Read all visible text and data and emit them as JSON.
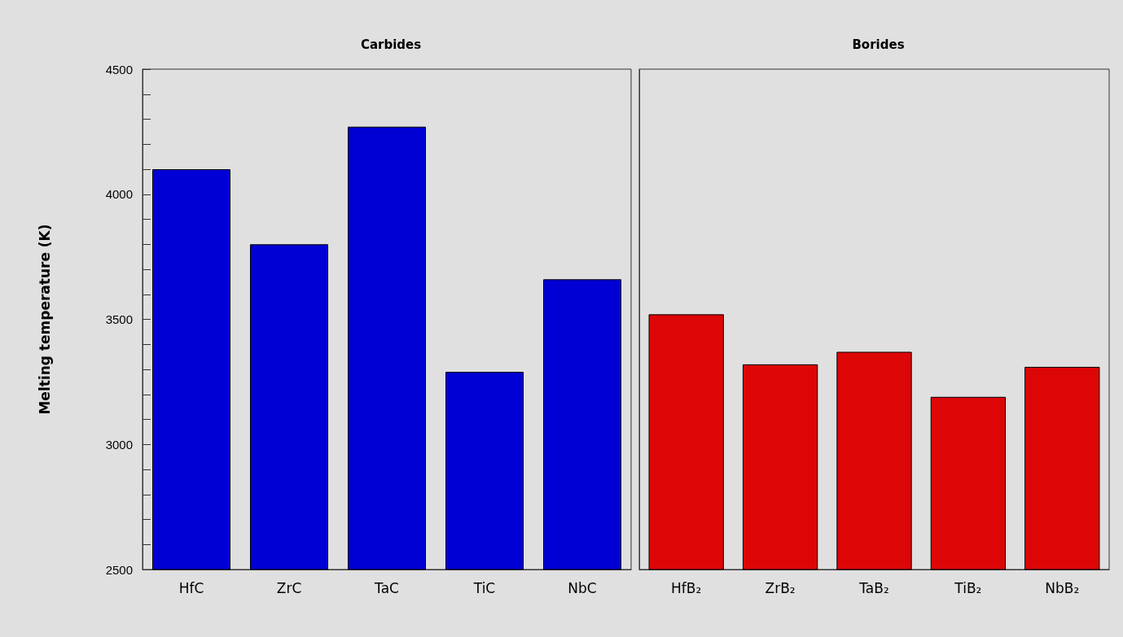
{
  "chart_data": [
    {
      "type": "bar",
      "title": "Carbides",
      "ylabel": "Melting temperature (K)",
      "categories": [
        "HfC",
        "ZrC",
        "TaC",
        "TiC",
        "NbC"
      ],
      "values": [
        4100,
        3800,
        4270,
        3290,
        3660
      ],
      "color": "#0000d4",
      "ylim": [
        2500,
        4500
      ],
      "yticks": [
        2500,
        {
          "value": 2600,
          "label": null
        },
        {
          "value": 2700,
          "label": null
        },
        {
          "value": 2800,
          "label": null
        },
        {
          "value": 2900,
          "label": null
        },
        3000,
        {
          "value": 3100,
          "label": null
        },
        {
          "value": 3200,
          "label": null
        },
        {
          "value": 3300,
          "label": null
        },
        {
          "value": 3400,
          "label": null
        },
        3500,
        {
          "value": 3600,
          "label": null
        },
        {
          "value": 3700,
          "label": null
        },
        {
          "value": 3800,
          "label": null
        },
        {
          "value": 3900,
          "label": null
        },
        4000,
        {
          "value": 4100,
          "label": null
        },
        {
          "value": 4200,
          "label": null
        },
        {
          "value": 4300,
          "label": null
        },
        {
          "value": 4400,
          "label": null
        },
        4500
      ],
      "grid": false
    },
    {
      "type": "bar",
      "title": "Borides",
      "categories": [
        "HfB₂",
        "ZrB₂",
        "TaB₂",
        "TiB₂",
        "NbB₂"
      ],
      "values": [
        3520,
        3320,
        3370,
        3190,
        3310
      ],
      "color": "#dd0606",
      "ylim": [
        2500,
        4500
      ],
      "tick_labels": "x",
      "grid": false
    }
  ]
}
